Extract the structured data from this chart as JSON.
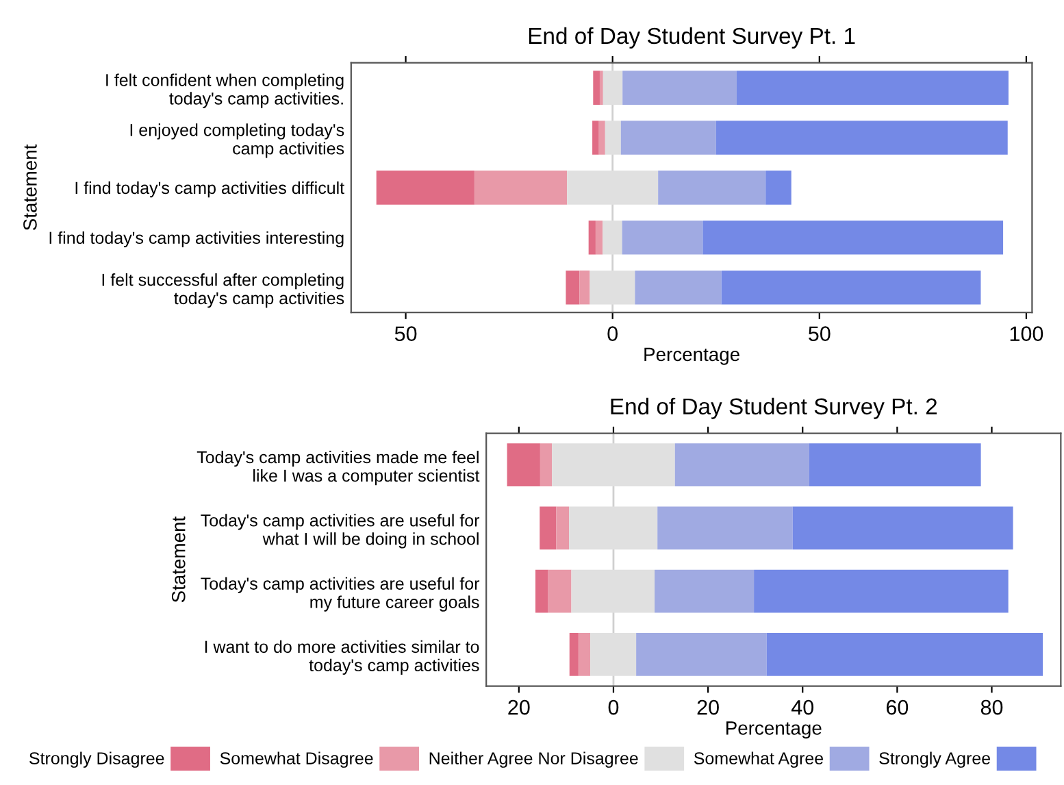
{
  "chart_data": [
    {
      "type": "bar",
      "orientation": "horizontal",
      "title": "End of Day Student Survey Pt. 1",
      "xlabel": "Percentage",
      "ylabel": "Statement",
      "categories": [
        "I felt confident when completing\ntoday's camp activities.",
        "I enjoyed completing today's\ncamp activities",
        "I find today's camp activities difficult",
        "I find today's camp activities interesting",
        "I felt successful after completing\ntoday's camp activities"
      ],
      "series": [
        {
          "color": "#e06c85",
          "base": [
            -4.7,
            -4.9,
            -57.1,
            -5.8,
            -11.3
          ],
          "values": [
            1.6,
            1.6,
            23.7,
            1.7,
            3.3
          ]
        },
        {
          "color": "#e899a8",
          "base": [
            -3.1,
            -3.3,
            -33.4,
            -4.1,
            -8.0
          ],
          "values": [
            0.8,
            1.5,
            22.4,
            1.7,
            2.5
          ]
        },
        {
          "color": "#e0e0e0",
          "base": [
            -2.3,
            -1.8,
            -11.0,
            -2.4,
            -5.5
          ],
          "values": [
            4.7,
            3.8,
            22.0,
            4.7,
            10.9
          ]
        },
        {
          "color": "#a0aae2",
          "base": [
            2.4,
            2.0,
            11.0,
            2.3,
            5.4
          ],
          "values": [
            27.6,
            23.0,
            26.0,
            19.5,
            20.9
          ]
        },
        {
          "color": "#7489e6",
          "base": [
            30.0,
            25.0,
            37.0,
            21.8,
            26.3
          ],
          "values": [
            65.7,
            70.5,
            6.2,
            72.6,
            62.7
          ]
        }
      ],
      "xlim": [
        -63.2,
        101.4
      ],
      "xticks": [
        {
          "value": -50,
          "label": "50"
        },
        0,
        50,
        100
      ],
      "ref_lines": [
        {
          "axis": "x",
          "value": 0,
          "color": "#d0d0d0"
        }
      ]
    },
    {
      "type": "bar",
      "orientation": "horizontal",
      "title": "End of Day Student Survey Pt. 2",
      "xlabel": "Percentage",
      "ylabel": "Statement",
      "categories": [
        "Today's camp activities made me feel\nlike I was a computer scientist",
        "Today's camp activities are useful for\nwhat I will be doing in school",
        "Today's camp activities are useful for\nmy future career goals",
        "I want to do more activities similar to\ntoday's camp activities"
      ],
      "series": [
        {
          "name": "Strongly Disagree",
          "color": "#e06c85",
          "base": [
            -22.5,
            -15.6,
            -16.5,
            -9.3
          ],
          "values": [
            7.0,
            3.5,
            2.7,
            1.9
          ]
        },
        {
          "name": "Somewhat Disagree",
          "color": "#e899a8",
          "base": [
            -15.5,
            -12.1,
            -13.8,
            -7.4
          ],
          "values": [
            2.5,
            2.7,
            4.9,
            2.5
          ]
        },
        {
          "name": "Neither Agree Nor Disagree",
          "color": "#e0e0e0",
          "base": [
            -13.0,
            -9.4,
            -8.9,
            -4.9
          ],
          "values": [
            26.0,
            18.7,
            17.6,
            9.7
          ]
        },
        {
          "name": "Somewhat Agree",
          "color": "#a0aae2",
          "base": [
            13.0,
            9.3,
            8.7,
            4.8
          ],
          "values": [
            28.4,
            28.6,
            21.0,
            27.6
          ]
        },
        {
          "name": "Strongly Agree",
          "color": "#7489e6",
          "base": [
            41.4,
            37.9,
            29.7,
            32.4
          ],
          "values": [
            36.3,
            46.6,
            53.8,
            58.4
          ]
        }
      ],
      "xlim": [
        -26.9,
        94.6
      ],
      "xticks": [
        {
          "value": -20,
          "label": "20"
        },
        0,
        20,
        40,
        60,
        80
      ],
      "ref_lines": [
        {
          "axis": "x",
          "value": 0,
          "color": "#d0d0d0"
        }
      ],
      "legend": "bottom"
    }
  ]
}
